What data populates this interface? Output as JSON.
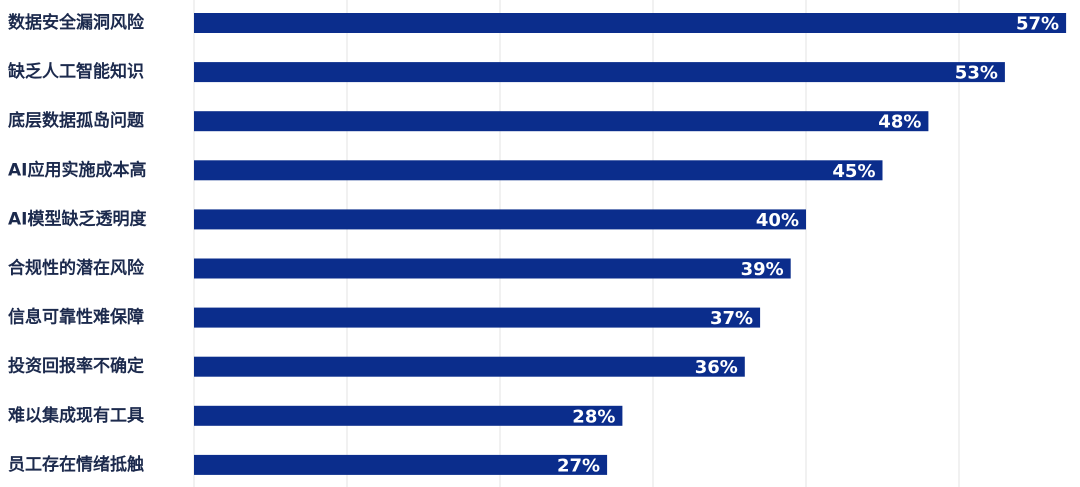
{
  "colors": {
    "bar": "#0b2d8c",
    "grid": "#e3e3e3",
    "label_text": "#1c2a4d",
    "value_text": "#ffffff"
  },
  "chart_data": {
    "type": "bar",
    "orientation": "horizontal",
    "title": "",
    "xlabel": "",
    "ylabel": "",
    "categories": [
      "数据安全漏洞风险",
      "缺乏人工智能知识",
      "底层数据孤岛问题",
      "AI应用实施成本高",
      "AI模型缺乏透明度",
      "合规性的潜在风险",
      "信息可靠性难保障",
      "投资回报率不确定",
      "难以集成现有工具",
      "员工存在情绪抵触"
    ],
    "values": [
      57,
      53,
      48,
      45,
      40,
      39,
      37,
      36,
      28,
      27
    ],
    "value_labels": [
      "57%",
      "53%",
      "48%",
      "45%",
      "40%",
      "39%",
      "37%",
      "36%",
      "28%",
      "27%"
    ],
    "xlim": [
      0,
      58
    ],
    "grid_at": [
      0,
      10,
      20,
      30,
      40,
      50
    ],
    "grid": true,
    "legend": "none"
  }
}
